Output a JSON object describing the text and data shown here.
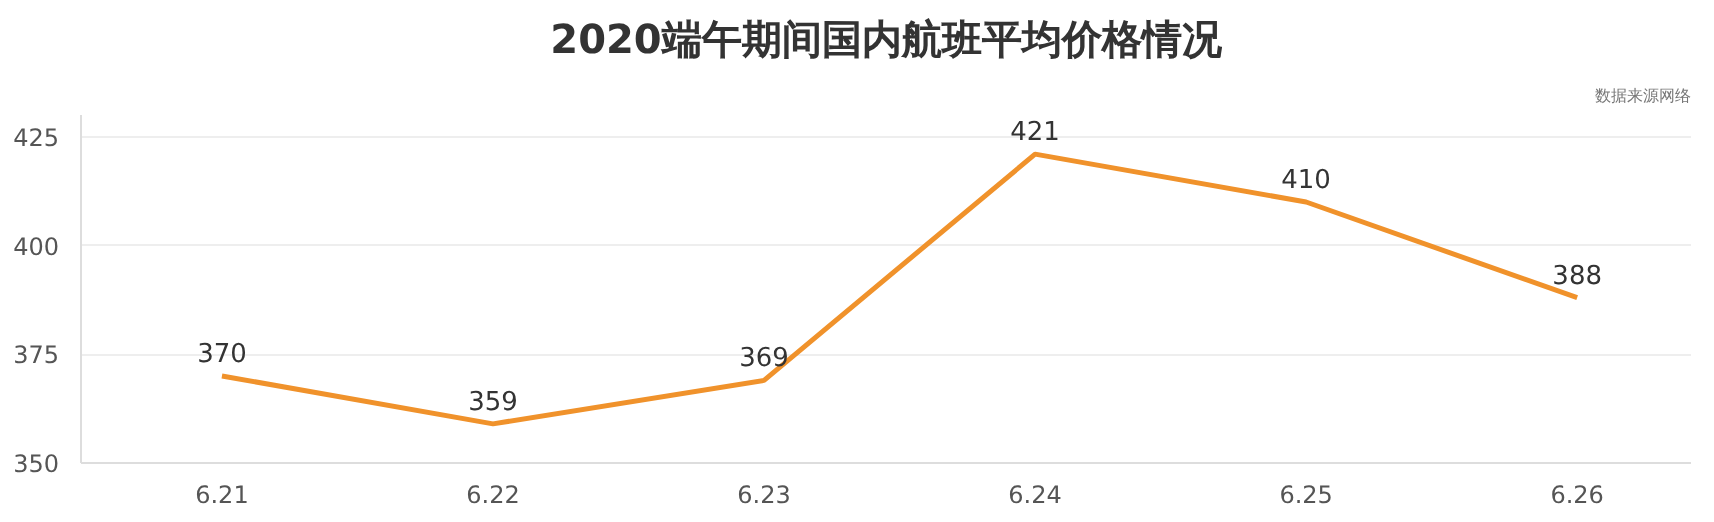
{
  "chart_data": {
    "type": "line",
    "title": "2020端午期间国内航班平均价格情况",
    "annotations": [
      "数据来源网络"
    ],
    "categories": [
      "6.21",
      "6.22",
      "6.23",
      "6.24",
      "6.25",
      "6.26"
    ],
    "series": [
      {
        "color": "#f0922b",
        "values": [
          370,
          359,
          369,
          421,
          410,
          388
        ]
      }
    ],
    "ylim": [
      350,
      430
    ],
    "yticks": [
      350,
      375,
      400,
      425
    ],
    "grid": "y",
    "data_labels": true,
    "marker": "none",
    "line_style": "solid"
  }
}
